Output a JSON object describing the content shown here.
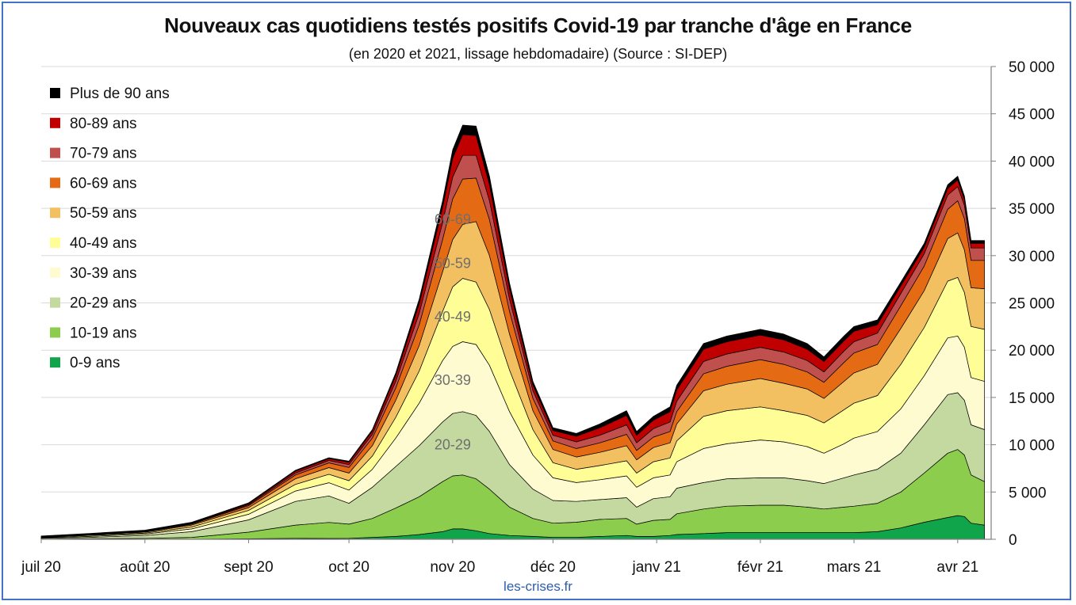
{
  "chart_data": {
    "type": "area",
    "stacked": true,
    "title": "Nouveaux cas quotidiens testés positifs Covid-19 par tranche d'âge en France",
    "subtitle": "(en 2020 et 2021, lissage hebdomadaire) (Source : SI-DEP)",
    "source_label": "les-crises.fr",
    "ylim": [
      0,
      50000
    ],
    "y_axis_side": "right",
    "y_ticks": [
      "0",
      "5 000",
      "10 000",
      "15 000",
      "20 000",
      "25 000",
      "30 000",
      "35 000",
      "40 000",
      "45 000",
      "50 000"
    ],
    "x_ticks": [
      {
        "date": "2020-07-01",
        "label": "juil 20"
      },
      {
        "date": "2020-08-01",
        "label": "août 20"
      },
      {
        "date": "2020-09-01",
        "label": "sept 20"
      },
      {
        "date": "2020-10-01",
        "label": "oct 20"
      },
      {
        "date": "2020-11-01",
        "label": "nov 20"
      },
      {
        "date": "2020-12-01",
        "label": "déc 20"
      },
      {
        "date": "2021-01-01",
        "label": "janv 21"
      },
      {
        "date": "2021-02-01",
        "label": "févr 21"
      },
      {
        "date": "2021-03-01",
        "label": "mars 21"
      },
      {
        "date": "2021-04-01",
        "label": "avr 21"
      }
    ],
    "grid": true,
    "legend_position": "top-left",
    "x": [
      "2020-07-01",
      "2020-07-15",
      "2020-08-01",
      "2020-08-15",
      "2020-09-01",
      "2020-09-15",
      "2020-09-25",
      "2020-10-01",
      "2020-10-08",
      "2020-10-15",
      "2020-10-22",
      "2020-10-29",
      "2020-11-01",
      "2020-11-04",
      "2020-11-08",
      "2020-11-12",
      "2020-11-18",
      "2020-11-25",
      "2020-12-01",
      "2020-12-08",
      "2020-12-15",
      "2020-12-23",
      "2020-12-26",
      "2020-12-31",
      "2021-01-05",
      "2021-01-07",
      "2021-01-15",
      "2021-01-22",
      "2021-02-01",
      "2021-02-08",
      "2021-02-15",
      "2021-02-20",
      "2021-02-26",
      "2021-03-01",
      "2021-03-08",
      "2021-03-15",
      "2021-03-22",
      "2021-03-29",
      "2021-04-01",
      "2021-04-03",
      "2021-04-05",
      "2021-04-09"
    ],
    "series": [
      {
        "name": "0-9 ans",
        "color": "#10a54b",
        "values": [
          0,
          0,
          0,
          0,
          50,
          100,
          80,
          100,
          200,
          300,
          500,
          800,
          1100,
          1100,
          900,
          600,
          400,
          300,
          200,
          200,
          300,
          400,
          300,
          300,
          400,
          500,
          600,
          700,
          700,
          700,
          700,
          700,
          700,
          700,
          800,
          1200,
          1800,
          2300,
          2500,
          2400,
          1700,
          1500
        ]
      },
      {
        "name": "10-19 ans",
        "color": "#8ccd4d",
        "values": [
          0,
          50,
          100,
          200,
          700,
          1400,
          1700,
          1500,
          2000,
          3000,
          4000,
          5300,
          5600,
          5700,
          5500,
          4700,
          3000,
          1900,
          1500,
          1600,
          1800,
          1800,
          1300,
          1700,
          1700,
          2200,
          2600,
          2800,
          2900,
          2900,
          2700,
          2500,
          2700,
          2800,
          3000,
          3800,
          5200,
          6800,
          7000,
          6500,
          5100,
          4600
        ]
      },
      {
        "name": "20-29 ans",
        "color": "#c4d9a0",
        "values": [
          100,
          150,
          300,
          600,
          1300,
          2500,
          2800,
          2200,
          3300,
          4400,
          5400,
          6300,
          6600,
          6700,
          6700,
          6100,
          4500,
          3100,
          2400,
          2200,
          2100,
          2200,
          1800,
          2300,
          2400,
          2700,
          2800,
          2900,
          2900,
          2900,
          2800,
          2700,
          3100,
          3300,
          3600,
          4100,
          5100,
          6200,
          6000,
          5800,
          5300,
          5500
        ]
      },
      {
        "name": "30-39 ans",
        "color": "#fefbd0",
        "values": [
          50,
          100,
          150,
          300,
          600,
          1100,
          1400,
          1400,
          1900,
          3000,
          4500,
          6500,
          7100,
          7400,
          7500,
          7000,
          5600,
          3600,
          2400,
          2000,
          2100,
          2300,
          2100,
          2200,
          2300,
          2800,
          3600,
          3700,
          4000,
          3800,
          3600,
          3200,
          3600,
          3900,
          4000,
          4700,
          5200,
          6000,
          6000,
          5600,
          5000,
          5100
        ]
      },
      {
        "name": "40-49 ans",
        "color": "#fefd96",
        "values": [
          50,
          100,
          100,
          200,
          400,
          700,
          900,
          1000,
          1400,
          2200,
          3400,
          5200,
          6300,
          6700,
          6600,
          5900,
          4400,
          2700,
          1600,
          1400,
          1500,
          1600,
          1500,
          1700,
          1800,
          2200,
          3400,
          3500,
          3500,
          3300,
          3300,
          3200,
          3600,
          3700,
          3800,
          4700,
          5100,
          6000,
          6200,
          5800,
          5400,
          5500
        ]
      },
      {
        "name": "50-59 ans",
        "color": "#f3c061",
        "values": [
          20,
          50,
          100,
          200,
          300,
          600,
          700,
          800,
          1100,
          1800,
          2700,
          4200,
          5000,
          5700,
          6400,
          5700,
          3800,
          2000,
          1400,
          1300,
          1400,
          1600,
          1400,
          1500,
          1600,
          1800,
          2700,
          2800,
          3000,
          2900,
          2800,
          2600,
          3000,
          3200,
          3300,
          3800,
          3900,
          4500,
          4700,
          4500,
          4100,
          4300
        ]
      },
      {
        "name": "60-69 ans",
        "color": "#e46b14",
        "values": [
          10,
          20,
          50,
          100,
          200,
          400,
          500,
          600,
          800,
          1300,
          2200,
          3400,
          4300,
          4800,
          4600,
          3800,
          2400,
          1300,
          900,
          900,
          1000,
          1200,
          1000,
          1100,
          1200,
          1300,
          1800,
          1900,
          2000,
          2000,
          1800,
          1700,
          2000,
          2100,
          2100,
          2400,
          2600,
          3100,
          3400,
          3300,
          2900,
          3000
        ]
      },
      {
        "name": "70-79 ans",
        "color": "#c0504d",
        "values": [
          10,
          20,
          30,
          50,
          100,
          200,
          250,
          300,
          400,
          700,
          1200,
          1800,
          2300,
          2500,
          2400,
          2000,
          1300,
          800,
          600,
          700,
          800,
          1000,
          800,
          900,
          1000,
          1100,
          1300,
          1300,
          1300,
          1300,
          1200,
          1100,
          1200,
          1200,
          1200,
          1300,
          1300,
          1500,
          1500,
          1400,
          1300,
          1300
        ]
      },
      {
        "name": "80-89 ans",
        "color": "#c00000",
        "values": [
          10,
          20,
          30,
          50,
          100,
          200,
          200,
          250,
          350,
          600,
          1000,
          1600,
          2000,
          2200,
          2100,
          1700,
          1100,
          600,
          500,
          600,
          800,
          1000,
          800,
          900,
          1100,
          1200,
          1300,
          1300,
          1300,
          1300,
          1200,
          1100,
          1100,
          1100,
          900,
          800,
          700,
          700,
          700,
          600,
          500,
          500
        ]
      },
      {
        "name": "Plus de 90 ans",
        "color": "#000000",
        "values": [
          100,
          100,
          100,
          100,
          100,
          100,
          100,
          120,
          150,
          300,
          500,
          700,
          900,
          1000,
          1000,
          900,
          600,
          400,
          300,
          300,
          400,
          500,
          400,
          400,
          500,
          500,
          600,
          600,
          600,
          600,
          600,
          500,
          500,
          500,
          500,
          400,
          400,
          400,
          400,
          400,
          300,
          300
        ]
      }
    ],
    "inline_labels": [
      "20-29",
      "30-39",
      "40-49",
      "50-59",
      "60-69"
    ]
  }
}
